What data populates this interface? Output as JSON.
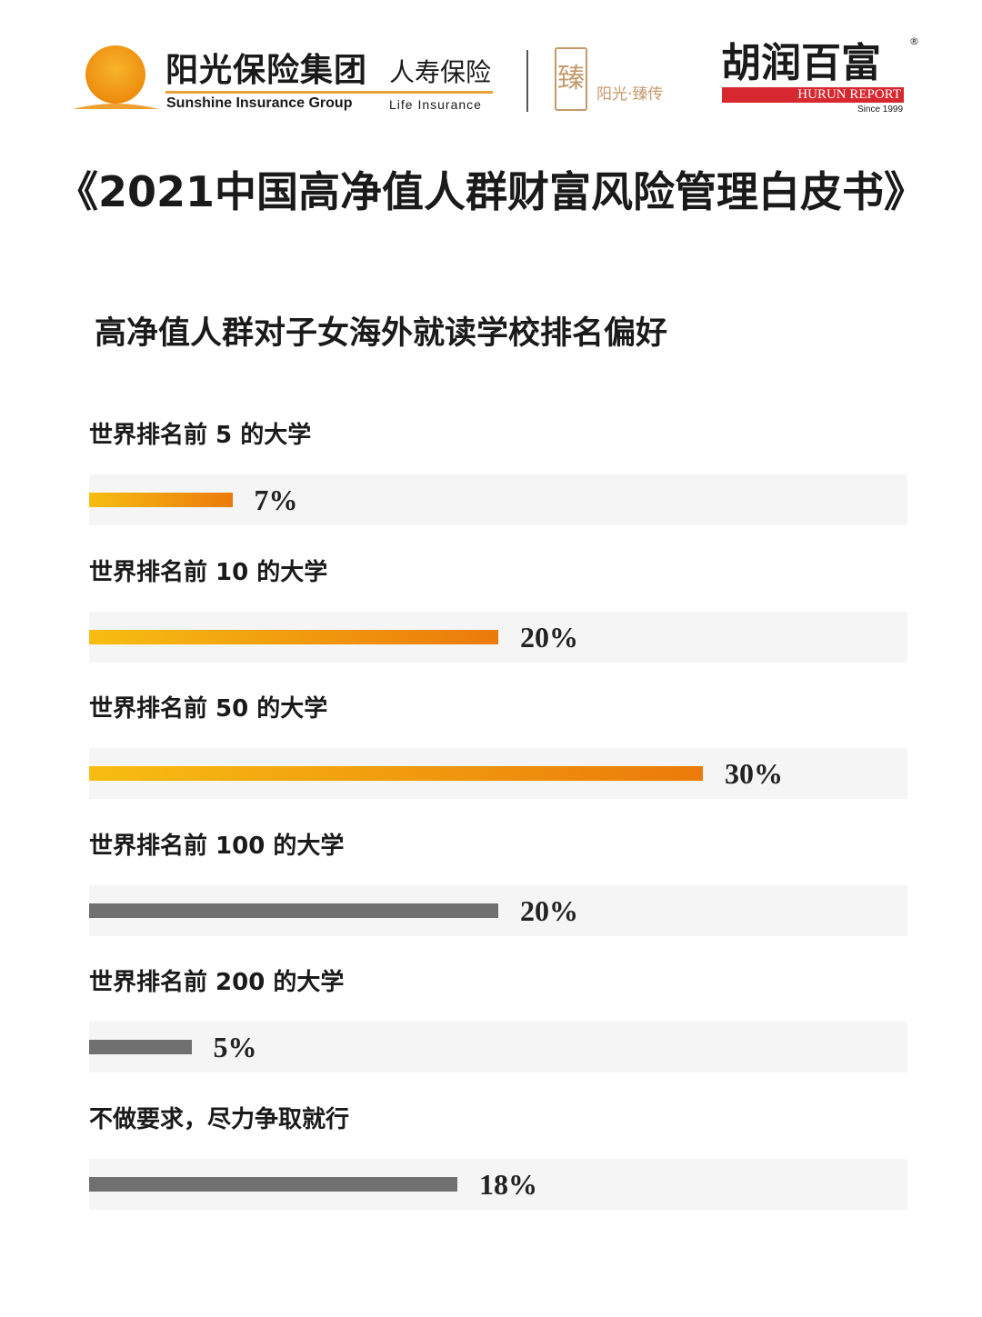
{
  "header": {
    "sunshine_cn": "阳光保险集团",
    "sunshine_life_cn": "人寿保险",
    "sunshine_en": "Sunshine Insurance Group",
    "sunshine_life_en": "Life Insurance",
    "seal_char": "臻",
    "seal_text": "阳光·臻传",
    "hurun_cn": "胡润百富",
    "hurun_en": "HURUN REPORT",
    "hurun_since": "Since 1999",
    "registered_mark": "®"
  },
  "main_title": "《2021中国高净值人群财富风险管理白皮书》",
  "colors": {
    "orange_start": "#f7bd12",
    "orange_end": "#eb7a0a",
    "gray": "#707070",
    "track": "#f5f5f5",
    "hurun_red": "#d7282f"
  },
  "chart_data": {
    "type": "bar",
    "orientation": "horizontal",
    "title": "高净值人群对子女海外就读学校排名偏好",
    "xlim": [
      0,
      40
    ],
    "grid": false,
    "categories": [
      "世界排名前 5 的大学",
      "世界排名前 10 的大学",
      "世界排名前 50 的大学",
      "世界排名前 100 的大学",
      "世界排名前 200 的大学",
      "不做要求，尽力争取就行"
    ],
    "values": [
      7,
      20,
      30,
      20,
      5,
      18
    ],
    "value_labels": [
      "7%",
      "20%",
      "30%",
      "20%",
      "5%",
      "18%"
    ],
    "bar_styles": [
      "orange",
      "orange",
      "orange",
      "gray",
      "gray",
      "gray"
    ]
  }
}
